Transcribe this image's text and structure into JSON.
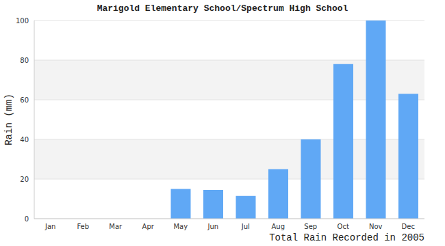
{
  "chart_data": {
    "type": "bar",
    "title": "Marigold Elementary School/Spectrum High School",
    "x_label": "Total Rain Recorded in 2005",
    "y_label": "Rain (mm)",
    "categories": [
      "Jan",
      "Feb",
      "Mar",
      "Apr",
      "May",
      "Jun",
      "Jul",
      "Aug",
      "Sep",
      "Oct",
      "Nov",
      "Dec"
    ],
    "values": [
      0,
      0,
      0,
      0,
      15,
      14.5,
      11.5,
      25,
      40,
      78,
      100,
      63
    ],
    "color": "#60a8f5",
    "ylim": [
      0,
      100
    ],
    "yticks": [
      0,
      20,
      40,
      60,
      80,
      100
    ],
    "grid": true
  }
}
